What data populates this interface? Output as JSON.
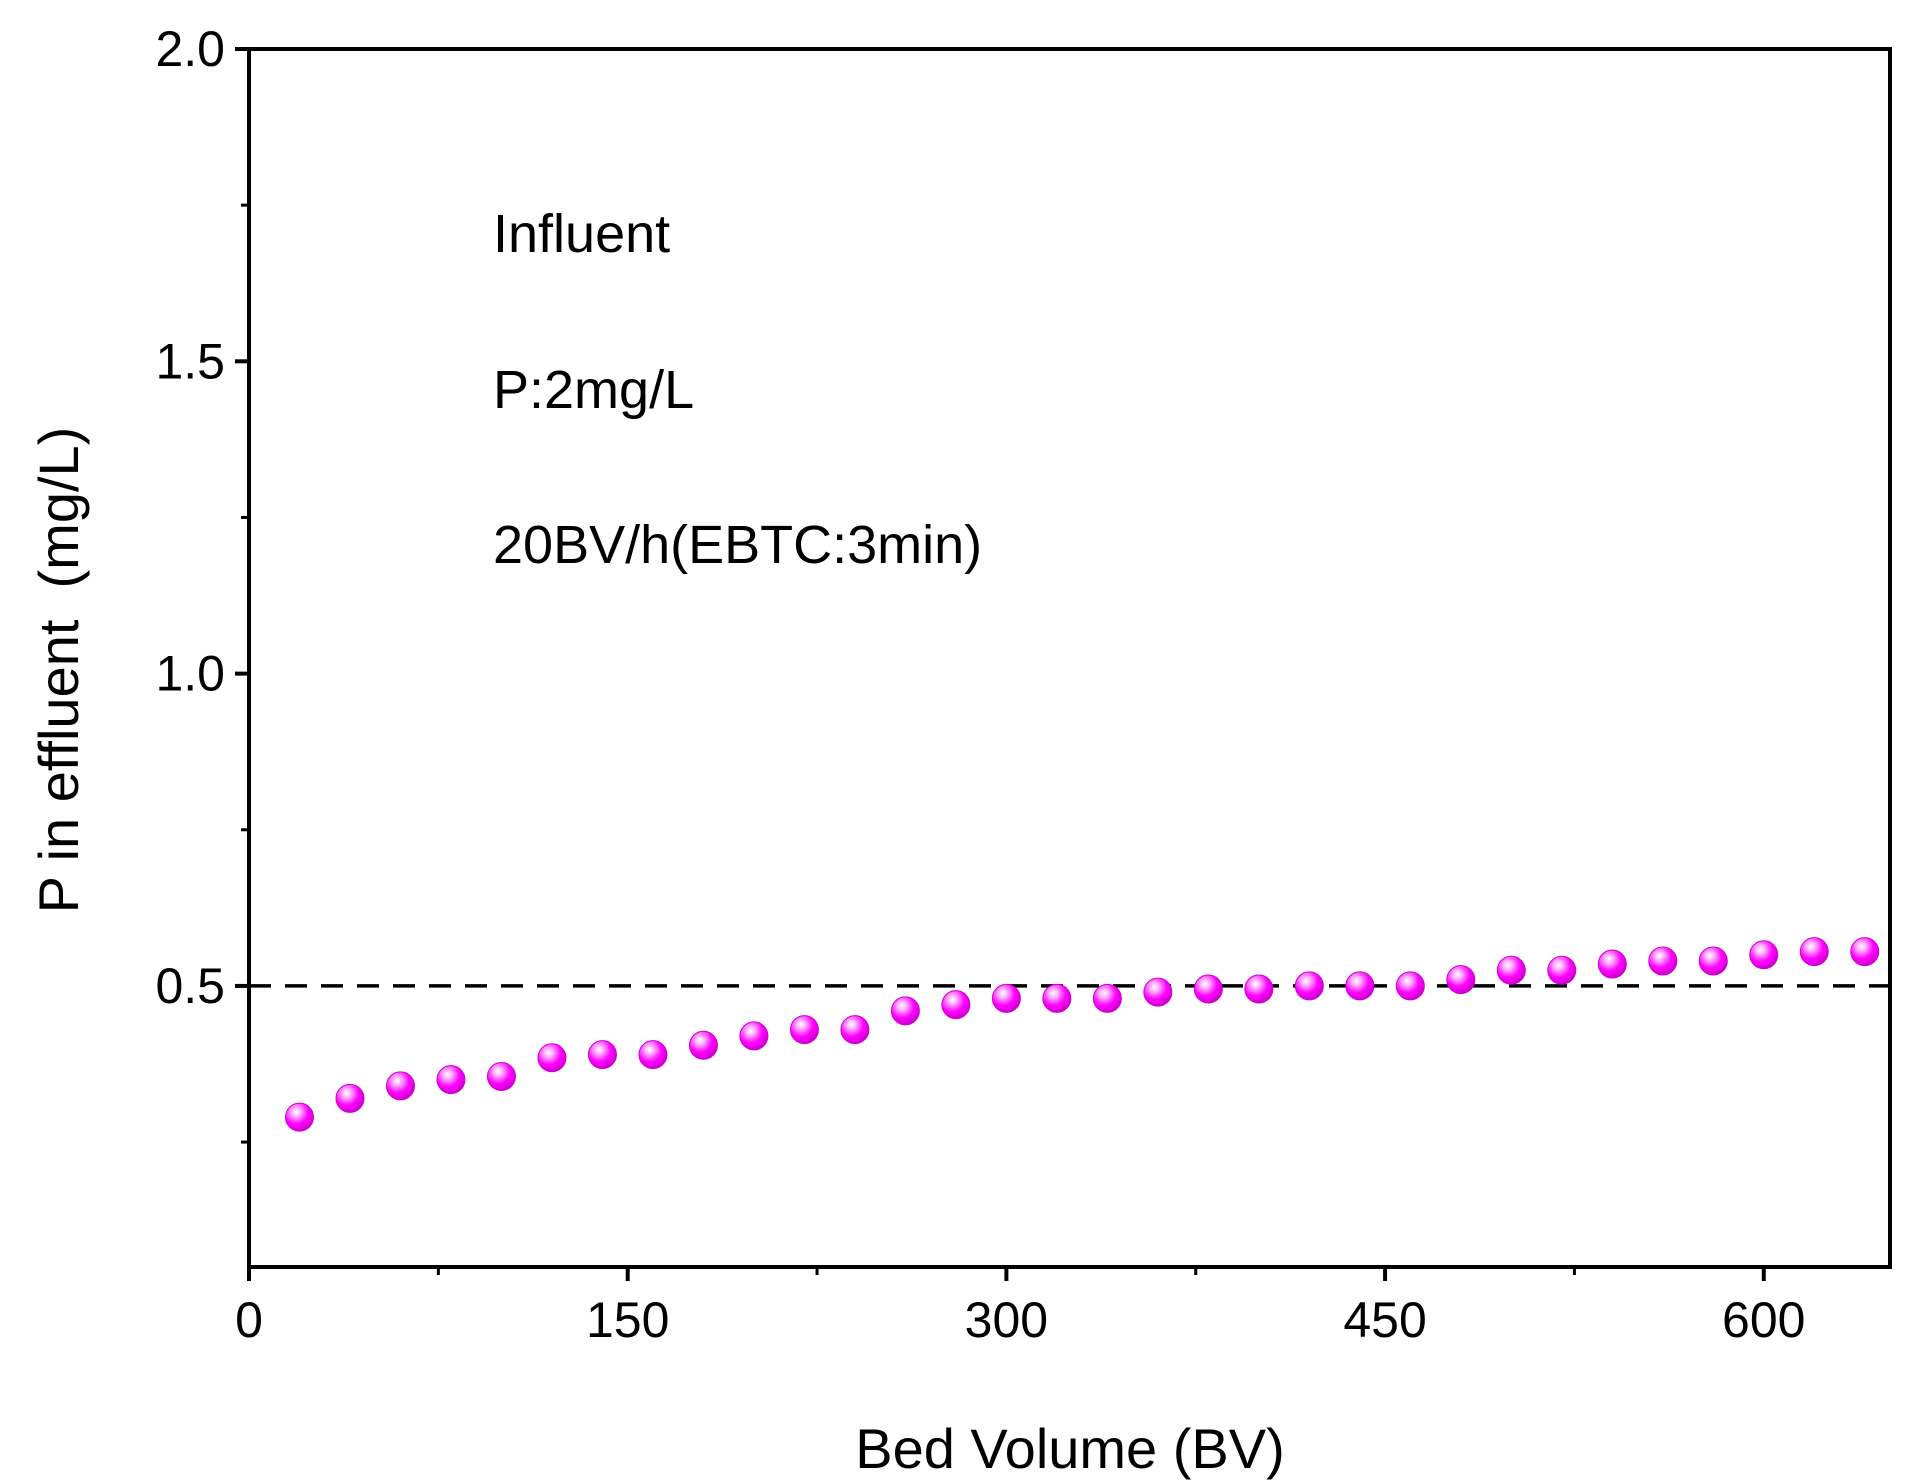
{
  "chart_data": {
    "type": "scatter",
    "title": "",
    "xlabel": "Bed Volume (BV)",
    "ylabel": "P in effluent  (mg/L)",
    "xlim": [
      0,
      650
    ],
    "ylim": [
      0.05,
      2.0
    ],
    "xticks": [
      0,
      150,
      300,
      450,
      600
    ],
    "xtick_labels": [
      "0",
      "150",
      "300",
      "450",
      "600"
    ],
    "xminor": [
      75,
      225,
      375,
      525
    ],
    "yticks": [
      0.5,
      1.0,
      1.5,
      2.0
    ],
    "ytick_labels": [
      "0.5",
      "1.0",
      "1.5",
      "2.0"
    ],
    "yminor": [
      0.25,
      0.75,
      1.25,
      1.75
    ],
    "grid": false,
    "reference_line": {
      "y": 0.5,
      "style": "dashed",
      "color": "#000000"
    },
    "annotations": [
      "Influent",
      "P:2mg/L",
      "20BV/h(EBTC:3min)"
    ],
    "series": [
      {
        "name": "P in effluent",
        "color": "#ff00ff",
        "marker": "sphere",
        "x": [
          20,
          40,
          60,
          80,
          100,
          120,
          140,
          160,
          180,
          200,
          220,
          240,
          260,
          280,
          300,
          320,
          340,
          360,
          380,
          400,
          420,
          440,
          460,
          480,
          500,
          520,
          540,
          560,
          580,
          600,
          620,
          640
        ],
        "y": [
          0.29,
          0.32,
          0.34,
          0.35,
          0.355,
          0.385,
          0.39,
          0.39,
          0.405,
          0.42,
          0.43,
          0.43,
          0.46,
          0.47,
          0.48,
          0.48,
          0.48,
          0.49,
          0.495,
          0.495,
          0.5,
          0.5,
          0.5,
          0.51,
          0.525,
          0.525,
          0.535,
          0.54,
          0.54,
          0.55,
          0.555,
          0.555
        ]
      }
    ]
  }
}
